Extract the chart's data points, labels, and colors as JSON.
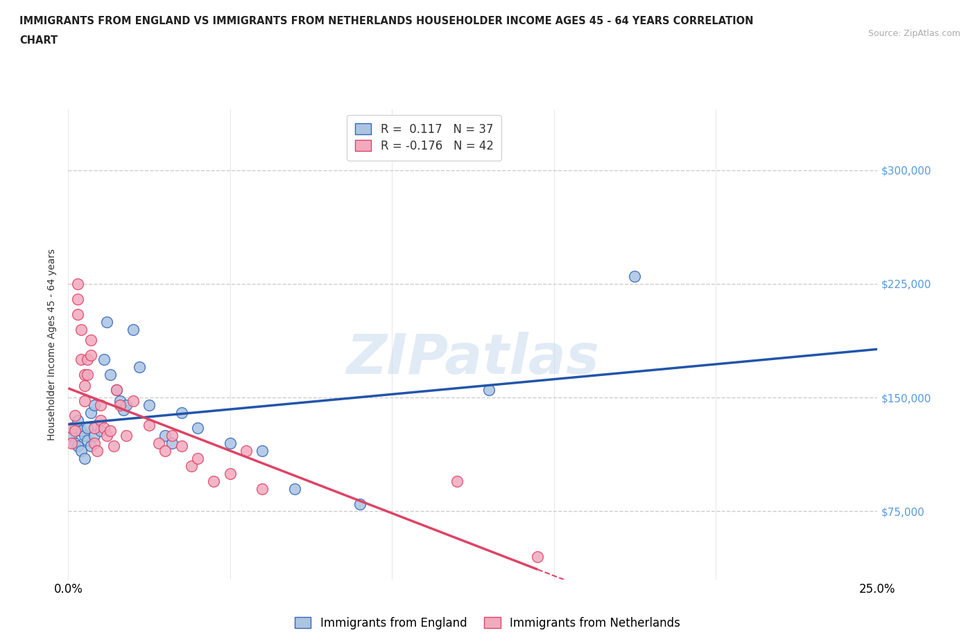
{
  "title_line1": "IMMIGRANTS FROM ENGLAND VS IMMIGRANTS FROM NETHERLANDS HOUSEHOLDER INCOME AGES 45 - 64 YEARS CORRELATION",
  "title_line2": "CHART",
  "source_text": "Source: ZipAtlas.com",
  "ylabel": "Householder Income Ages 45 - 64 years",
  "xlim": [
    0.0,
    0.25
  ],
  "ylim": [
    30000,
    340000
  ],
  "ytick_vals": [
    75000,
    150000,
    225000,
    300000
  ],
  "ytick_labels": [
    "$75,000",
    "$150,000",
    "$225,000",
    "$300,000"
  ],
  "blue_R": 0.117,
  "blue_N": 37,
  "pink_R": -0.176,
  "pink_N": 42,
  "blue_color": "#aac4e2",
  "blue_edge_color": "#3366bb",
  "blue_line_color": "#2255aa",
  "pink_color": "#f2aabf",
  "pink_edge_color": "#dd4466",
  "pink_line_color": "#dd4466",
  "blue_scatter_x": [
    0.001,
    0.002,
    0.002,
    0.003,
    0.003,
    0.004,
    0.004,
    0.005,
    0.005,
    0.006,
    0.006,
    0.007,
    0.007,
    0.008,
    0.008,
    0.009,
    0.01,
    0.011,
    0.012,
    0.013,
    0.015,
    0.016,
    0.017,
    0.018,
    0.02,
    0.022,
    0.025,
    0.03,
    0.032,
    0.035,
    0.04,
    0.05,
    0.06,
    0.07,
    0.09,
    0.13,
    0.175
  ],
  "blue_scatter_y": [
    125000,
    130000,
    120000,
    135000,
    118000,
    128000,
    115000,
    125000,
    110000,
    130000,
    122000,
    140000,
    118000,
    145000,
    125000,
    132000,
    128000,
    175000,
    200000,
    165000,
    155000,
    148000,
    142000,
    145000,
    195000,
    170000,
    145000,
    125000,
    120000,
    140000,
    130000,
    120000,
    115000,
    90000,
    80000,
    155000,
    230000
  ],
  "pink_scatter_x": [
    0.001,
    0.001,
    0.002,
    0.002,
    0.003,
    0.003,
    0.003,
    0.004,
    0.004,
    0.005,
    0.005,
    0.005,
    0.006,
    0.006,
    0.007,
    0.007,
    0.008,
    0.008,
    0.009,
    0.01,
    0.01,
    0.011,
    0.012,
    0.013,
    0.014,
    0.015,
    0.016,
    0.018,
    0.02,
    0.025,
    0.028,
    0.03,
    0.032,
    0.035,
    0.038,
    0.04,
    0.045,
    0.05,
    0.055,
    0.06,
    0.12,
    0.145
  ],
  "pink_scatter_y": [
    130000,
    120000,
    138000,
    128000,
    225000,
    215000,
    205000,
    195000,
    175000,
    165000,
    158000,
    148000,
    175000,
    165000,
    188000,
    178000,
    130000,
    120000,
    115000,
    145000,
    135000,
    130000,
    125000,
    128000,
    118000,
    155000,
    145000,
    125000,
    148000,
    132000,
    120000,
    115000,
    125000,
    118000,
    105000,
    110000,
    95000,
    100000,
    115000,
    90000,
    95000,
    45000
  ],
  "watermark": "ZIPatlas",
  "legend_label_blue": "Immigrants from England",
  "legend_label_pink": "Immigrants from Netherlands",
  "background_color": "#ffffff",
  "grid_color": "#dddddd",
  "grid_color_h": "#cccccc"
}
